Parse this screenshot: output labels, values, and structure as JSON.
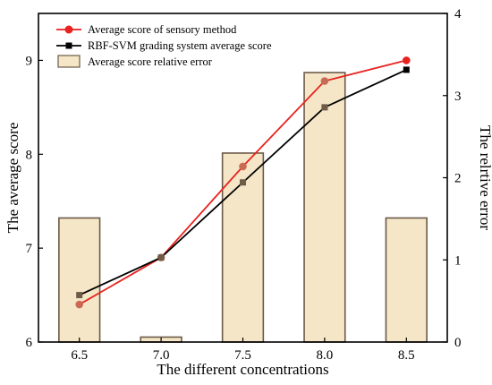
{
  "chart_data": {
    "type": "bar+line",
    "xlabel": "The different concentrations",
    "ylabel_left": "The average score",
    "ylabel_right": "The relrtive error",
    "categories": [
      "6.5",
      "7.0",
      "7.5",
      "8.0",
      "8.5"
    ],
    "ylim_left": [
      6,
      9.5
    ],
    "yticks_left": [
      "6",
      "7",
      "8",
      "9"
    ],
    "ylim_right": [
      0,
      4
    ],
    "yticks_right": [
      "0",
      "1",
      "2",
      "3",
      "4"
    ],
    "grid": false,
    "legend_position": "top-left",
    "series": [
      {
        "name": "Average score of sensory method",
        "kind": "line",
        "axis": "left",
        "marker": "circle",
        "color": "#e8231f",
        "values": [
          6.4,
          6.9,
          7.87,
          8.78,
          9.0
        ]
      },
      {
        "name": "RBF-SVM grading system average score",
        "kind": "line",
        "axis": "left",
        "marker": "square",
        "color": "#000000",
        "values": [
          6.5,
          6.9,
          7.7,
          8.5,
          8.9
        ]
      },
      {
        "name": "Average score relative error",
        "kind": "bar",
        "axis": "right",
        "color": "#f5e6c8",
        "edge_color": "#6b5a48",
        "values": [
          1.51,
          0.06,
          2.3,
          3.28,
          1.51
        ]
      }
    ]
  }
}
